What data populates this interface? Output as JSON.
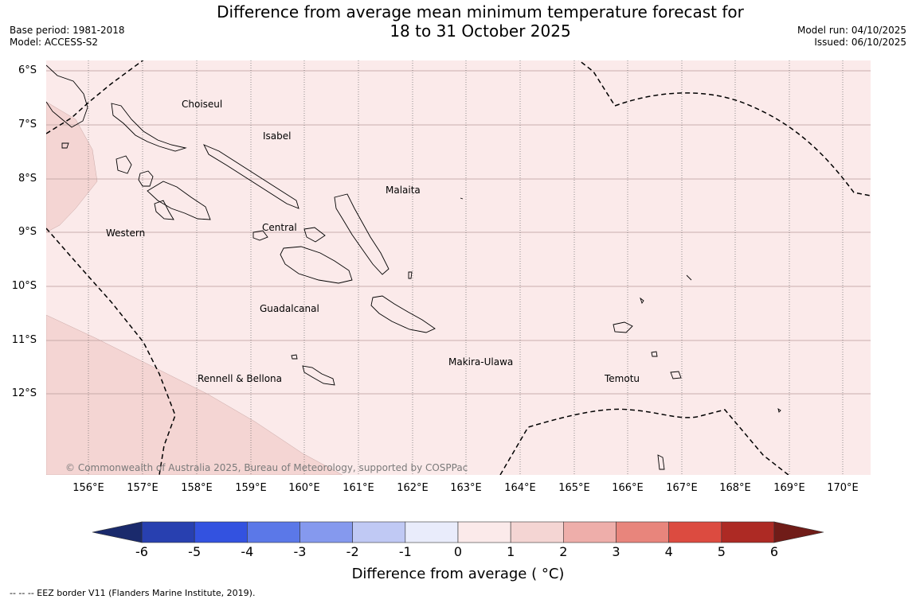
{
  "title": {
    "line1": "Difference from average mean minimum temperature forecast for",
    "line2": "18 to 31 October 2025"
  },
  "meta": {
    "base_period": "Base period: 1981-2018",
    "model": "Model: ACCESS-S2",
    "model_run": "Model run: 04/10/2025",
    "issued": "Issued: 06/10/2025"
  },
  "map": {
    "lat_labels": [
      "6°S",
      "7°S",
      "8°S",
      "9°S",
      "10°S",
      "11°S",
      "12°S"
    ],
    "lon_labels": [
      "156°E",
      "157°E",
      "158°E",
      "159°E",
      "160°E",
      "161°E",
      "162°E",
      "163°E",
      "164°E",
      "165°E",
      "166°E",
      "167°E",
      "168°E",
      "169°E",
      "170°E"
    ],
    "regions": [
      "Choiseul",
      "Isabel",
      "Malaita",
      "Western",
      "Central",
      "Guadalcanal",
      "Makira-Ulawa",
      "Rennell & Bellona",
      "Temotu"
    ],
    "copyright": "© Commonwealth of Australia 2025, Bureau of Meteorology, supported by COSPPac",
    "background_anomaly_band": "0 to 1",
    "warmer_areas_band": "1 to 2",
    "colors": {
      "band_0_1": "#fbeaea",
      "band_1_2": "#f4d5d3"
    }
  },
  "colorbar": {
    "ticks": [
      "-6",
      "-5",
      "-4",
      "-3",
      "-2",
      "-1",
      "0",
      "1",
      "2",
      "3",
      "4",
      "5",
      "6"
    ],
    "colors": [
      "#1a2a6c",
      "#2840b0",
      "#3352e0",
      "#5b78e8",
      "#8599ee",
      "#c0c9f4",
      "#e9ecfb",
      "#fbeaea",
      "#f4d5d3",
      "#eeaeaa",
      "#e8857c",
      "#dc4b40",
      "#ad2a24",
      "#701c18"
    ],
    "title": "Difference from average ( °C)"
  },
  "footnote": "--  --  -- EEZ border V11 (Flanders Marine Institute, 2019)."
}
